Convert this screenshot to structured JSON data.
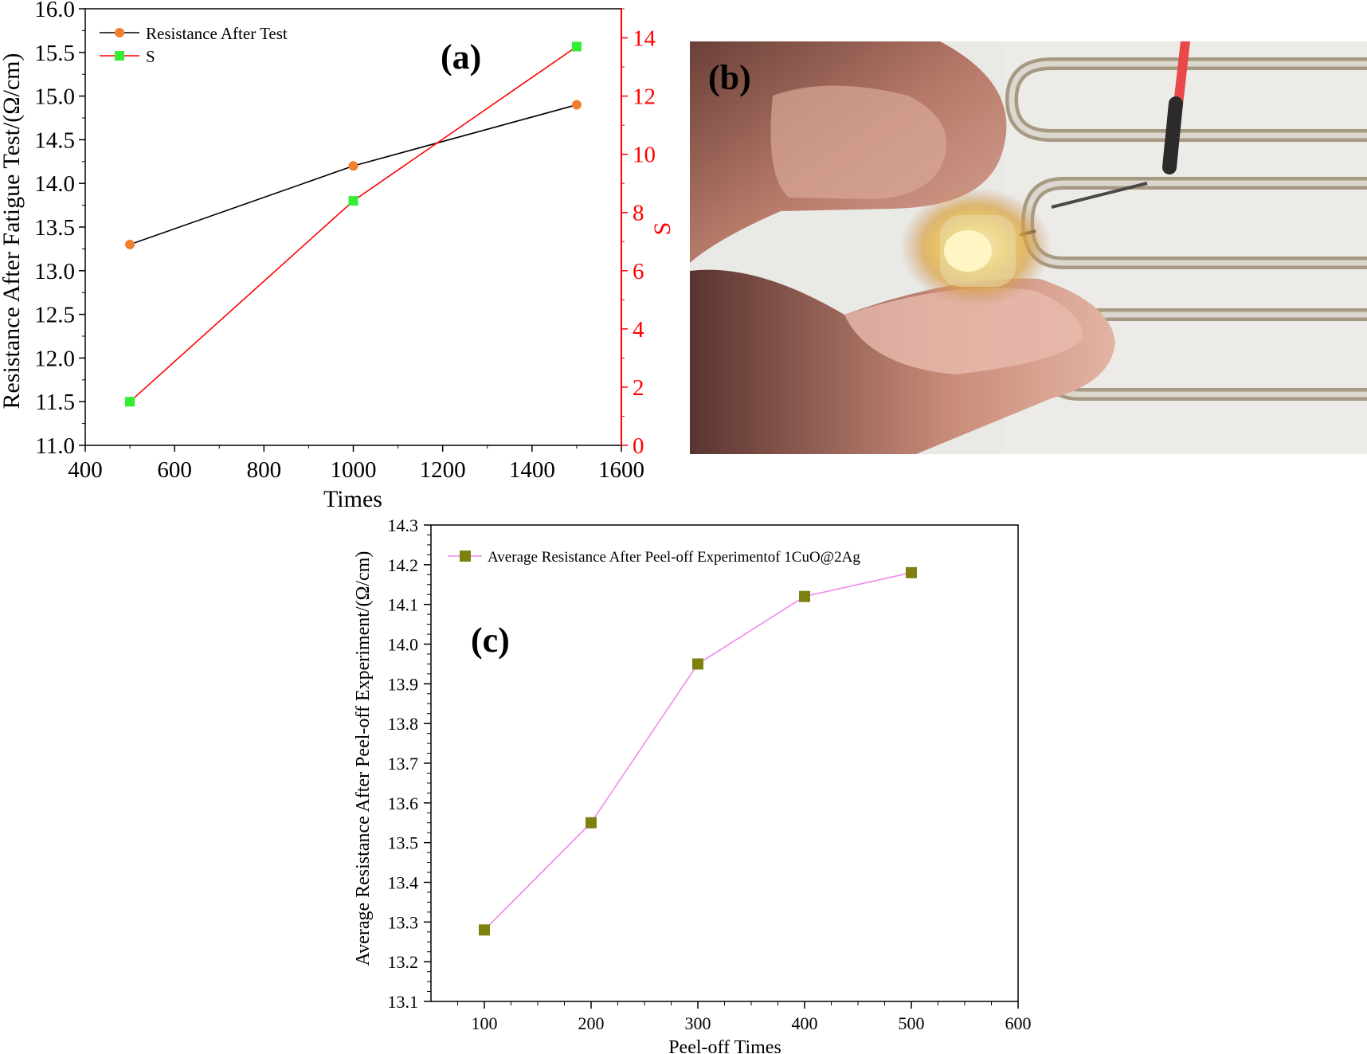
{
  "colors": {
    "resistance_line": "#000000",
    "resistance_marker": "#f08030",
    "s_line": "#ff0000",
    "s_marker": "#33ee33",
    "right_axis": "#ff0000",
    "peel_line": "#ee88ee",
    "peel_marker": "#808010"
  },
  "panels": {
    "a_label": "(a)",
    "b_label": "(b)",
    "c_label": "(c)"
  },
  "photo": {
    "icon": "led-photo-icon"
  },
  "chart_data": [
    {
      "id": "a",
      "type": "line",
      "panel_label": "(a)",
      "xlabel": "Times",
      "ylabel": "Resistance After Fatigue Test/(Ω/cm)",
      "y2label": "S",
      "xlim": [
        400,
        1600
      ],
      "ylim": [
        11.0,
        16.0
      ],
      "y2lim": [
        0,
        15
      ],
      "x_ticks": [
        400,
        600,
        800,
        1000,
        1200,
        1400,
        1600
      ],
      "y_ticks": [
        "11.0",
        "11.5",
        "12.0",
        "12.5",
        "13.0",
        "13.5",
        "14.0",
        "14.5",
        "15.0",
        "15.5",
        "16.0"
      ],
      "y2_ticks": [
        0,
        2,
        4,
        6,
        8,
        10,
        12,
        14
      ],
      "legend_position": "top-left",
      "series": [
        {
          "name": "Resistance After Test",
          "axis": "left",
          "marker": "circle",
          "x": [
            500,
            1000,
            1500
          ],
          "values": [
            13.3,
            14.2,
            14.9
          ]
        },
        {
          "name": "S",
          "axis": "right",
          "marker": "square",
          "x": [
            500,
            1000,
            1500
          ],
          "values": [
            1.5,
            8.4,
            13.7
          ]
        }
      ]
    },
    {
      "id": "c",
      "type": "line",
      "panel_label": "(c)",
      "xlabel": "Peel-off Times",
      "ylabel": "Average Resistance After Peel-off Experiment/(Ω/cm)",
      "xlim": [
        50,
        600
      ],
      "ylim": [
        13.1,
        14.3
      ],
      "x_ticks": [
        100,
        200,
        300,
        400,
        500,
        600
      ],
      "y_ticks": [
        "13.1",
        "13.2",
        "13.3",
        "13.4",
        "13.5",
        "13.6",
        "13.7",
        "13.8",
        "13.9",
        "14.0",
        "14.1",
        "14.2",
        "14.3"
      ],
      "legend_position": "top-left",
      "series": [
        {
          "name": "Average Resistance After Peel-off Experimentof 1CuO@2Ag",
          "marker": "square",
          "x": [
            100,
            200,
            300,
            400,
            500
          ],
          "values": [
            13.28,
            13.55,
            13.95,
            14.12,
            14.18
          ]
        }
      ]
    }
  ]
}
